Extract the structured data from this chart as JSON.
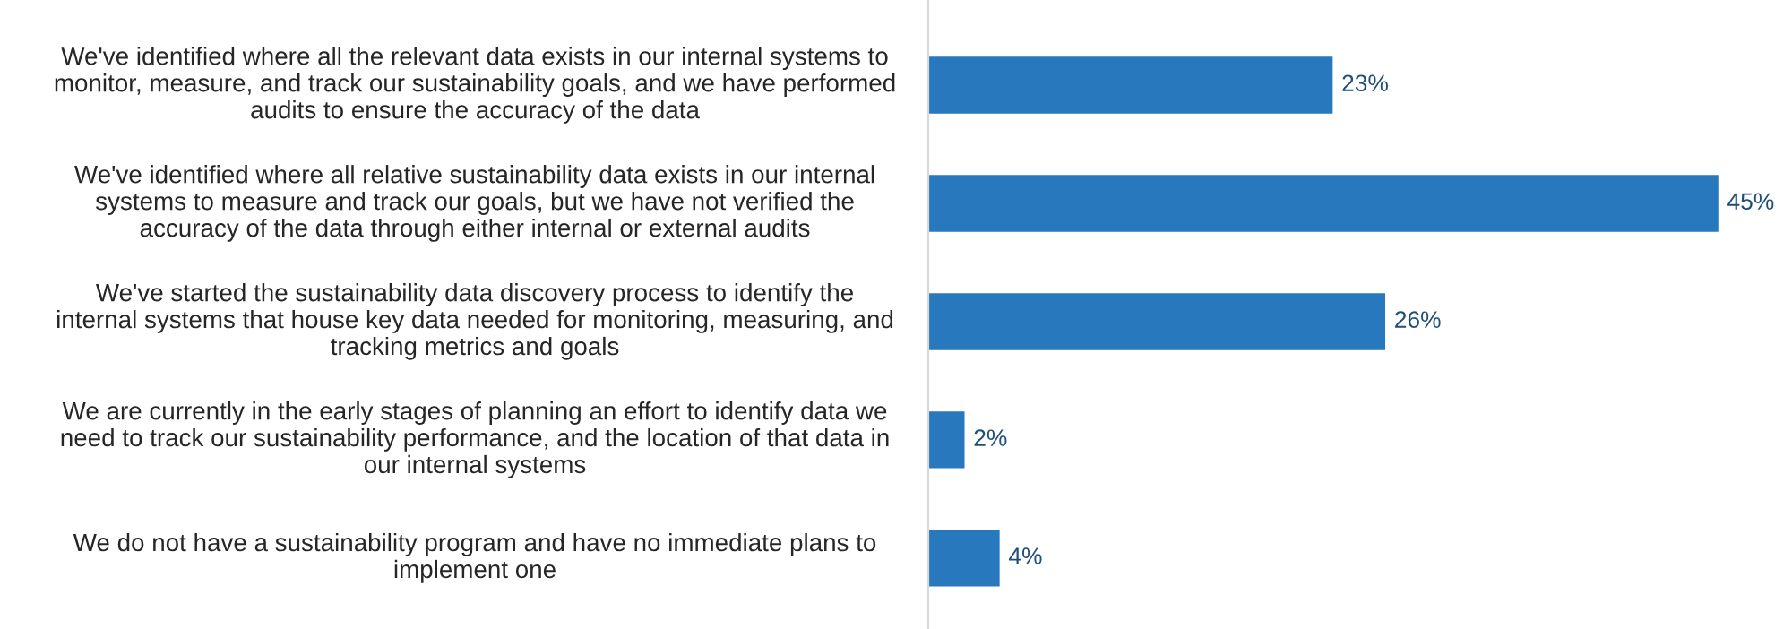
{
  "chart_data": {
    "type": "bar",
    "orientation": "horizontal",
    "categories": [
      "We've identified where all the relevant data exists in our internal systems to\nmonitor, measure, and track our sustainability goals, and we have performed\naudits to ensure the accuracy of the data",
      "We've identified where all relative sustainability data exists in our internal\nsystems to measure and track our goals, but we have not verified the\naccuracy of the data through either internal or external audits",
      "We've started the sustainability data discovery process to identify the\ninternal systems that house key data needed for monitoring, measuring, and\ntracking metrics and goals",
      "We are currently in the early stages of planning an effort to identify data we\nneed to track our sustainability performance, and the location of that data in\nour internal systems",
      "We do not have a sustainability program and have no immediate plans to\nimplement one"
    ],
    "values": [
      23,
      45,
      26,
      2,
      4
    ],
    "value_labels": [
      "23%",
      "45%",
      "26%",
      "2%",
      "4%"
    ],
    "color": "#2878bd",
    "tick_labels": false
  }
}
